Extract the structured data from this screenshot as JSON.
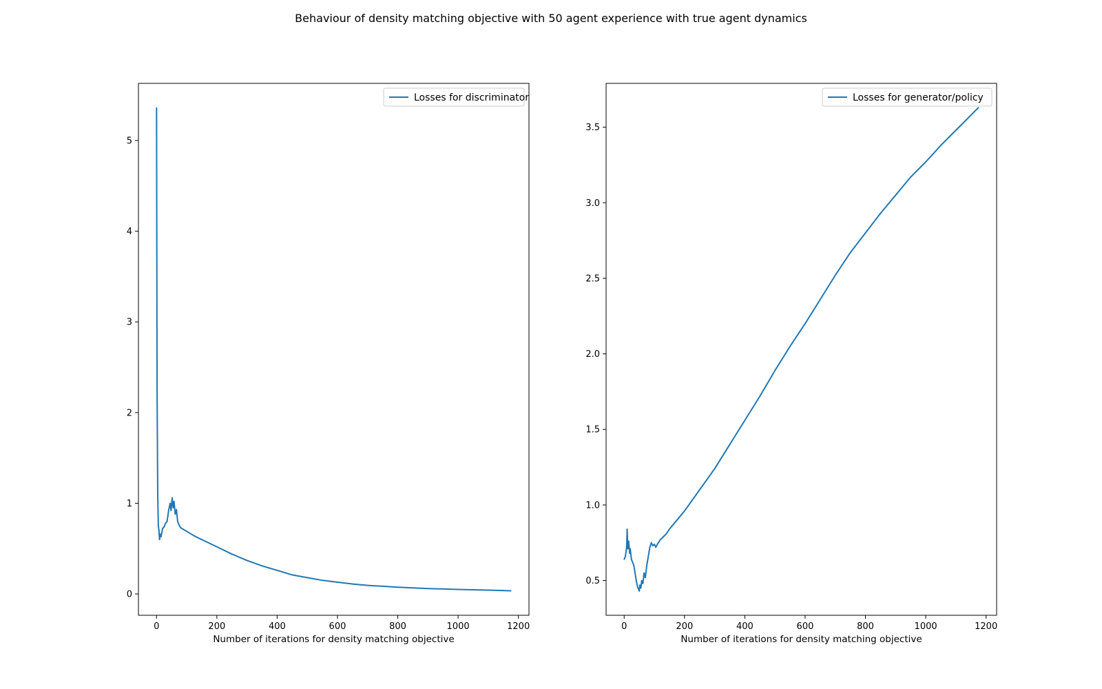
{
  "figure": {
    "title": "Behaviour of density matching objective with 50 agent experience with true agent dynamics",
    "line_color": "#1f77b4"
  },
  "chart_data": [
    {
      "type": "line",
      "title": "",
      "xlabel": "Number of iterations for density matching objective",
      "ylabel": "",
      "xlim": [
        -60,
        1235
      ],
      "ylim": [
        -0.235,
        5.63
      ],
      "xticks": [
        0,
        200,
        400,
        600,
        800,
        1000,
        1200
      ],
      "yticks": [
        0,
        1,
        2,
        3,
        4,
        5
      ],
      "ytick_labels": [
        "0",
        "1",
        "2",
        "3",
        "4",
        "5"
      ],
      "legend": "top-right",
      "series": [
        {
          "name": "Losses for discriminator",
          "x": [
            0,
            2,
            4,
            6,
            8,
            10,
            12,
            15,
            20,
            25,
            30,
            35,
            40,
            45,
            48,
            52,
            55,
            58,
            62,
            66,
            70,
            75,
            80,
            90,
            100,
            125,
            150,
            175,
            200,
            250,
            300,
            350,
            400,
            450,
            500,
            550,
            600,
            650,
            700,
            750,
            800,
            850,
            900,
            950,
            1000,
            1050,
            1100,
            1150,
            1175
          ],
          "y": [
            5.36,
            2.2,
            1.1,
            0.75,
            0.7,
            0.6,
            0.66,
            0.63,
            0.72,
            0.74,
            0.78,
            0.8,
            0.92,
            1.0,
            0.92,
            1.06,
            0.95,
            1.02,
            0.88,
            0.93,
            0.8,
            0.76,
            0.73,
            0.71,
            0.69,
            0.64,
            0.6,
            0.56,
            0.52,
            0.44,
            0.37,
            0.31,
            0.26,
            0.21,
            0.18,
            0.15,
            0.13,
            0.11,
            0.095,
            0.085,
            0.075,
            0.067,
            0.06,
            0.055,
            0.05,
            0.046,
            0.042,
            0.038,
            0.035
          ]
        }
      ]
    },
    {
      "type": "line",
      "title": "",
      "xlabel": "Number of iterations for density matching objective",
      "ylabel": "",
      "xlim": [
        -60,
        1235
      ],
      "ylim": [
        0.27,
        3.79
      ],
      "xticks": [
        0,
        200,
        400,
        600,
        800,
        1000,
        1200
      ],
      "yticks": [
        0.5,
        1.0,
        1.5,
        2.0,
        2.5,
        3.0,
        3.5
      ],
      "ytick_labels": [
        "0.5",
        "1.0",
        "1.5",
        "2.0",
        "2.5",
        "3.0",
        "3.5"
      ],
      "legend": "top-right",
      "series": [
        {
          "name": "Losses for generator/policy",
          "x": [
            0,
            4,
            8,
            10,
            12,
            15,
            18,
            20,
            24,
            28,
            32,
            36,
            40,
            44,
            48,
            50,
            52,
            55,
            58,
            62,
            66,
            70,
            75,
            80,
            85,
            90,
            95,
            100,
            105,
            110,
            120,
            130,
            140,
            150,
            175,
            200,
            250,
            300,
            350,
            400,
            450,
            500,
            550,
            600,
            650,
            700,
            750,
            800,
            850,
            900,
            950,
            1000,
            1050,
            1100,
            1150,
            1175
          ],
          "y": [
            0.64,
            0.66,
            0.72,
            0.84,
            0.71,
            0.76,
            0.68,
            0.71,
            0.64,
            0.62,
            0.6,
            0.55,
            0.5,
            0.46,
            0.44,
            0.43,
            0.47,
            0.45,
            0.5,
            0.48,
            0.55,
            0.52,
            0.6,
            0.66,
            0.72,
            0.75,
            0.73,
            0.74,
            0.72,
            0.74,
            0.77,
            0.79,
            0.81,
            0.84,
            0.9,
            0.96,
            1.1,
            1.24,
            1.4,
            1.56,
            1.72,
            1.89,
            2.05,
            2.2,
            2.36,
            2.52,
            2.67,
            2.8,
            2.93,
            3.05,
            3.17,
            3.27,
            3.38,
            3.48,
            3.58,
            3.63
          ]
        }
      ]
    }
  ]
}
